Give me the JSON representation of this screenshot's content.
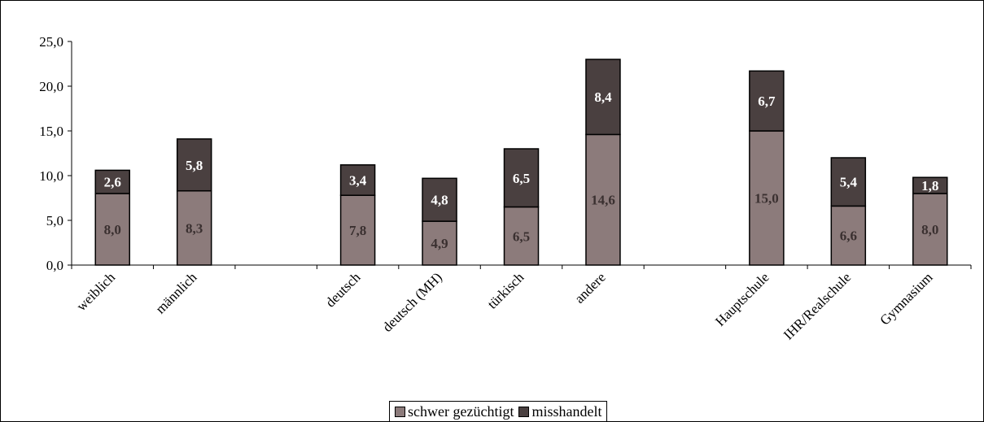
{
  "chart_data": {
    "type": "bar",
    "stacked": true,
    "categories": [
      "weiblich",
      "männlich",
      "",
      "deutsch",
      "deutsch (MH)",
      "türkisch",
      "andere",
      "",
      "Hauptschule",
      "IHR/Realschule",
      "Gymnasium"
    ],
    "series": [
      {
        "name": "schwer gezüchtigt",
        "color": "#8c7b7b",
        "values": [
          8.0,
          8.3,
          null,
          7.8,
          4.9,
          6.5,
          14.6,
          null,
          15.0,
          6.6,
          8.0
        ],
        "labels": [
          "8,0",
          "8,3",
          "",
          "7,8",
          "4,9",
          "6,5",
          "14,6",
          "",
          "15,0",
          "6,6",
          "8,0"
        ],
        "label_color": "#3a3030"
      },
      {
        "name": "misshandelt",
        "color": "#4a4040",
        "values": [
          2.6,
          5.8,
          null,
          3.4,
          4.8,
          6.5,
          8.4,
          null,
          6.7,
          5.4,
          1.8
        ],
        "labels": [
          "2,6",
          "5,8",
          "",
          "3,4",
          "4,8",
          "6,5",
          "8,4",
          "",
          "6,7",
          "5,4",
          "1,8"
        ],
        "label_color": "#ffffff"
      }
    ],
    "ylim": [
      0,
      25
    ],
    "yticks": [
      0,
      5,
      10,
      15,
      20,
      25
    ],
    "ytick_labels": [
      "0,0",
      "5,0",
      "10,0",
      "15,0",
      "20,0",
      "25,0"
    ],
    "legend_position": "bottom",
    "grid": false
  }
}
